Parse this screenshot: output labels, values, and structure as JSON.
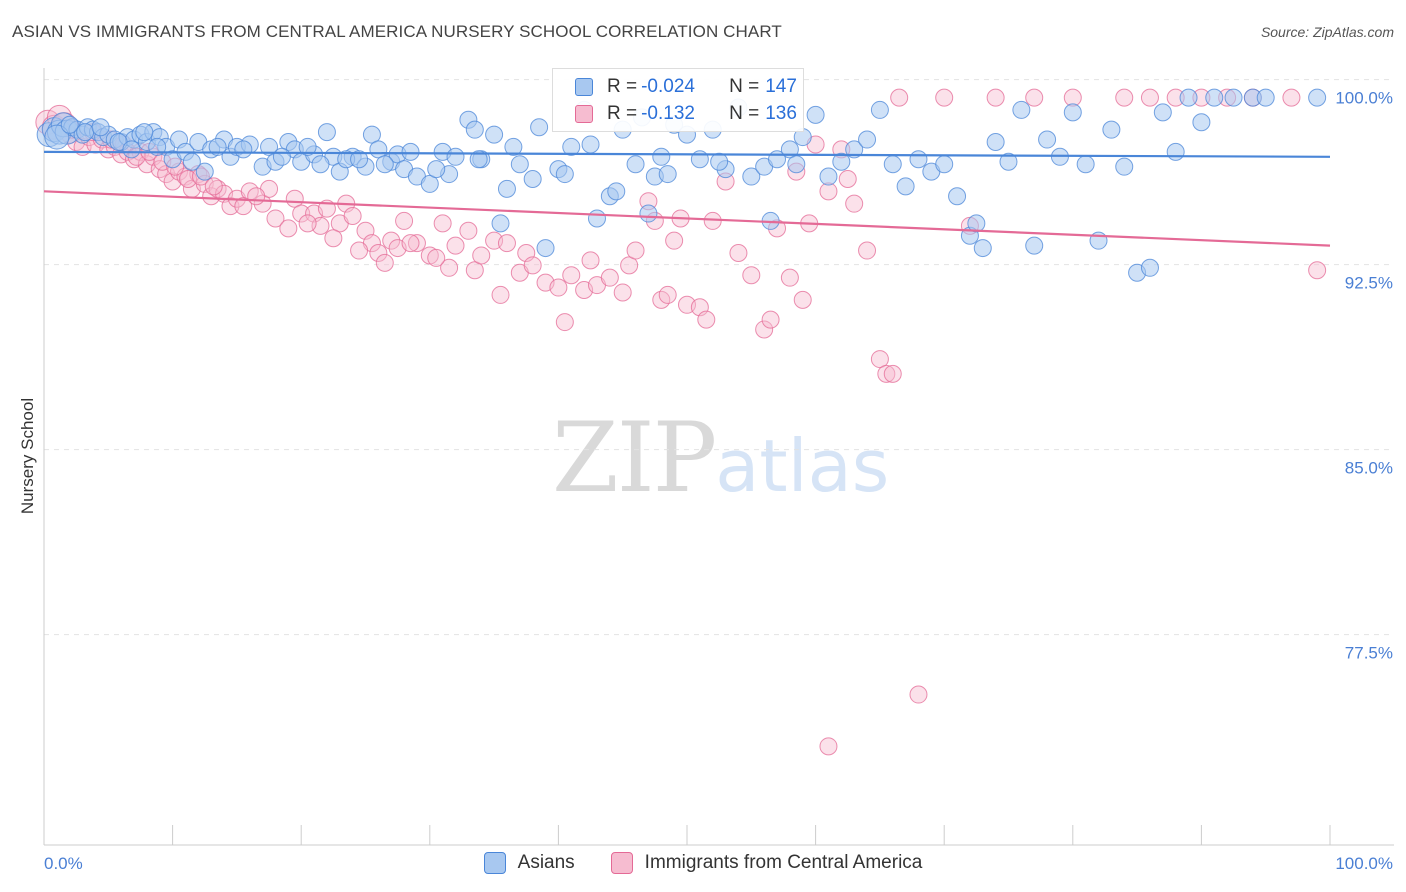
{
  "title": "ASIAN VS IMMIGRANTS FROM CENTRAL AMERICA NURSERY SCHOOL CORRELATION CHART",
  "source": "Source: ZipAtlas.com",
  "watermark": {
    "zip": "ZIP",
    "atlas": "atlas"
  },
  "legend": {
    "asians": {
      "r_label": "R =",
      "r_value": "-0.024",
      "n_label": "N =",
      "n_value": "147"
    },
    "immigrants": {
      "r_label": "R =",
      "r_value": "-0.132",
      "n_label": "N =",
      "n_value": "136"
    }
  },
  "colors": {
    "asian": "#4a86d8",
    "asian_fill": "#a8c8f0",
    "immigrant": "#e46a96",
    "immigrant_fill": "#f6bcd0"
  },
  "chart_data": {
    "type": "scatter",
    "title": "ASIAN VS IMMIGRANTS FROM CENTRAL AMERICA NURSERY SCHOOL CORRELATION CHART",
    "xlabel": "",
    "ylabel": "Nursery School",
    "xlim": [
      0,
      100
    ],
    "ylim": [
      69.7,
      101.2
    ],
    "x_ticks": [
      "0.0%",
      "100.0%"
    ],
    "y_ticks": [
      {
        "value": 100.0,
        "label": "100.0%"
      },
      {
        "value": 92.5,
        "label": "92.5%"
      },
      {
        "value": 85.0,
        "label": "85.0%"
      },
      {
        "value": 77.5,
        "label": "77.5%"
      }
    ],
    "grid": true,
    "legend_position": "bottom",
    "series": [
      {
        "name": "Asians",
        "color": "#4a86d8",
        "trend": {
          "x": [
            0,
            100
          ],
          "y": [
            97.8,
            97.6
          ]
        },
        "points": [
          [
            0.4,
            98.5
          ],
          [
            0.8,
            98.7
          ],
          [
            1.2,
            98.6
          ],
          [
            1.5,
            98.9
          ],
          [
            1.8,
            98.6
          ],
          [
            2.2,
            98.8
          ],
          [
            2.6,
            98.7
          ],
          [
            3.0,
            98.5
          ],
          [
            3.4,
            98.8
          ],
          [
            3.8,
            98.7
          ],
          [
            4.2,
            98.6
          ],
          [
            4.6,
            98.4
          ],
          [
            5.0,
            98.5
          ],
          [
            5.5,
            98.3
          ],
          [
            6.0,
            98.2
          ],
          [
            6.5,
            98.4
          ],
          [
            7.0,
            98.3
          ],
          [
            7.5,
            98.5
          ],
          [
            8.0,
            98.2
          ],
          [
            8.5,
            98.6
          ],
          [
            9.0,
            98.4
          ],
          [
            9.5,
            98.0
          ],
          [
            10.0,
            97.5
          ],
          [
            10.5,
            98.3
          ],
          [
            11.0,
            97.8
          ],
          [
            12.0,
            98.2
          ],
          [
            12.5,
            97.0
          ],
          [
            13.0,
            97.9
          ],
          [
            14.0,
            98.3
          ],
          [
            14.5,
            97.6
          ],
          [
            15.0,
            98.0
          ],
          [
            16.0,
            98.1
          ],
          [
            17.0,
            97.2
          ],
          [
            17.5,
            98.0
          ],
          [
            18.0,
            97.4
          ],
          [
            19.0,
            98.2
          ],
          [
            19.5,
            97.9
          ],
          [
            20.0,
            97.4
          ],
          [
            21.0,
            97.7
          ],
          [
            22.0,
            98.6
          ],
          [
            22.5,
            97.6
          ],
          [
            23.0,
            97.0
          ],
          [
            24.0,
            97.6
          ],
          [
            25.0,
            97.2
          ],
          [
            25.5,
            98.5
          ],
          [
            26.0,
            97.9
          ],
          [
            27.0,
            97.4
          ],
          [
            27.5,
            97.7
          ],
          [
            28.0,
            97.1
          ],
          [
            29.0,
            96.8
          ],
          [
            30.0,
            96.5
          ],
          [
            31.0,
            97.8
          ],
          [
            31.5,
            96.9
          ],
          [
            32.0,
            97.6
          ],
          [
            33.0,
            99.1
          ],
          [
            33.5,
            98.7
          ],
          [
            34.0,
            97.5
          ],
          [
            35.0,
            98.5
          ],
          [
            35.5,
            94.9
          ],
          [
            36.0,
            96.3
          ],
          [
            37.0,
            97.3
          ],
          [
            38.0,
            96.7
          ],
          [
            38.5,
            98.8
          ],
          [
            39.0,
            93.9
          ],
          [
            40.0,
            97.1
          ],
          [
            41.0,
            98.0
          ],
          [
            42.0,
            99.5
          ],
          [
            42.5,
            98.1
          ],
          [
            43.0,
            95.1
          ],
          [
            44.0,
            96.0
          ],
          [
            45.0,
            98.7
          ],
          [
            46.0,
            97.3
          ],
          [
            46.5,
            99.2
          ],
          [
            47.0,
            95.3
          ],
          [
            47.5,
            96.8
          ],
          [
            48.0,
            97.6
          ],
          [
            49.0,
            98.9
          ],
          [
            50.0,
            98.5
          ],
          [
            51.0,
            97.5
          ],
          [
            52.0,
            98.7
          ],
          [
            53.0,
            97.1
          ],
          [
            54.0,
            99.6
          ],
          [
            55.0,
            96.8
          ],
          [
            56.0,
            97.2
          ],
          [
            56.5,
            95.0
          ],
          [
            57.0,
            97.5
          ],
          [
            58.0,
            97.9
          ],
          [
            59.0,
            98.4
          ],
          [
            60.0,
            99.3
          ],
          [
            61.0,
            96.8
          ],
          [
            62.0,
            97.4
          ],
          [
            63.0,
            97.9
          ],
          [
            64.0,
            98.3
          ],
          [
            65.0,
            99.5
          ],
          [
            66.0,
            97.3
          ],
          [
            67.0,
            96.4
          ],
          [
            68.0,
            97.5
          ],
          [
            69.0,
            97.0
          ],
          [
            70.0,
            97.3
          ],
          [
            71.0,
            96.0
          ],
          [
            72.0,
            94.4
          ],
          [
            72.5,
            94.9
          ],
          [
            73.0,
            93.9
          ],
          [
            74.0,
            98.2
          ],
          [
            75.0,
            97.4
          ],
          [
            76.0,
            99.5
          ],
          [
            77.0,
            94.0
          ],
          [
            78.0,
            98.3
          ],
          [
            79.0,
            97.6
          ],
          [
            80.0,
            99.4
          ],
          [
            81.0,
            97.3
          ],
          [
            82.0,
            94.2
          ],
          [
            83.0,
            98.7
          ],
          [
            84.0,
            97.2
          ],
          [
            85.0,
            92.9
          ],
          [
            86.0,
            93.1
          ],
          [
            87.0,
            99.4
          ],
          [
            88.0,
            97.8
          ],
          [
            89.0,
            100.0
          ],
          [
            90.0,
            99.0
          ],
          [
            91.0,
            100.0
          ],
          [
            92.5,
            100.0
          ],
          [
            94.0,
            100.0
          ],
          [
            95.0,
            100.0
          ],
          [
            99.0,
            100.0
          ],
          [
            1.0,
            98.4
          ],
          [
            2.0,
            98.9
          ],
          [
            3.2,
            98.6
          ],
          [
            4.4,
            98.8
          ],
          [
            5.8,
            98.2
          ],
          [
            6.8,
            97.9
          ],
          [
            7.8,
            98.6
          ],
          [
            8.8,
            98.0
          ],
          [
            11.5,
            97.4
          ],
          [
            13.5,
            98.0
          ],
          [
            15.5,
            97.9
          ],
          [
            18.5,
            97.6
          ],
          [
            20.5,
            98.0
          ],
          [
            21.5,
            97.3
          ],
          [
            23.5,
            97.5
          ],
          [
            24.5,
            97.5
          ],
          [
            26.5,
            97.3
          ],
          [
            28.5,
            97.8
          ],
          [
            30.5,
            97.1
          ],
          [
            33.8,
            97.5
          ],
          [
            36.5,
            98.0
          ],
          [
            40.5,
            96.9
          ],
          [
            44.5,
            96.2
          ],
          [
            48.5,
            96.9
          ],
          [
            52.5,
            97.4
          ],
          [
            58.5,
            97.3
          ]
        ]
      },
      {
        "name": "Immigrants from Central America",
        "color": "#e46a96",
        "trend": {
          "x": [
            0,
            100
          ],
          "y": [
            96.2,
            94.0
          ]
        },
        "points": [
          [
            0.3,
            99.0
          ],
          [
            0.8,
            98.8
          ],
          [
            1.2,
            99.2
          ],
          [
            1.6,
            98.9
          ],
          [
            2.0,
            98.5
          ],
          [
            2.5,
            98.2
          ],
          [
            3.0,
            98.0
          ],
          [
            3.5,
            98.4
          ],
          [
            4.0,
            98.1
          ],
          [
            4.5,
            98.3
          ],
          [
            5.0,
            97.9
          ],
          [
            5.5,
            98.0
          ],
          [
            6.0,
            97.7
          ],
          [
            6.5,
            97.8
          ],
          [
            7.0,
            97.5
          ],
          [
            7.5,
            97.8
          ],
          [
            8.0,
            97.3
          ],
          [
            8.5,
            97.6
          ],
          [
            9.0,
            97.1
          ],
          [
            9.5,
            96.9
          ],
          [
            10.0,
            96.6
          ],
          [
            10.5,
            97.0
          ],
          [
            11.0,
            96.8
          ],
          [
            11.5,
            96.3
          ],
          [
            12.0,
            96.9
          ],
          [
            12.5,
            96.5
          ],
          [
            13.0,
            96.0
          ],
          [
            13.5,
            96.3
          ],
          [
            14.0,
            96.1
          ],
          [
            14.5,
            95.6
          ],
          [
            15.0,
            95.9
          ],
          [
            16.0,
            96.2
          ],
          [
            17.0,
            95.7
          ],
          [
            17.5,
            96.3
          ],
          [
            18.0,
            95.1
          ],
          [
            19.0,
            94.7
          ],
          [
            19.5,
            95.9
          ],
          [
            20.0,
            95.3
          ],
          [
            21.0,
            95.3
          ],
          [
            21.5,
            94.8
          ],
          [
            22.0,
            95.5
          ],
          [
            23.0,
            94.9
          ],
          [
            23.5,
            95.7
          ],
          [
            24.0,
            95.2
          ],
          [
            25.0,
            94.6
          ],
          [
            25.5,
            94.1
          ],
          [
            26.0,
            93.7
          ],
          [
            27.0,
            94.2
          ],
          [
            27.5,
            93.9
          ],
          [
            28.0,
            95.0
          ],
          [
            29.0,
            94.1
          ],
          [
            30.0,
            93.6
          ],
          [
            31.0,
            94.9
          ],
          [
            31.5,
            93.1
          ],
          [
            32.0,
            94.0
          ],
          [
            33.0,
            94.6
          ],
          [
            33.5,
            93.0
          ],
          [
            34.0,
            93.6
          ],
          [
            35.0,
            94.2
          ],
          [
            35.5,
            92.0
          ],
          [
            36.0,
            94.1
          ],
          [
            37.0,
            92.9
          ],
          [
            37.5,
            93.7
          ],
          [
            38.0,
            93.2
          ],
          [
            39.0,
            92.5
          ],
          [
            40.0,
            92.3
          ],
          [
            40.5,
            90.9
          ],
          [
            41.0,
            92.8
          ],
          [
            42.0,
            92.2
          ],
          [
            42.5,
            93.4
          ],
          [
            43.0,
            92.4
          ],
          [
            44.0,
            92.7
          ],
          [
            45.0,
            92.1
          ],
          [
            45.5,
            93.2
          ],
          [
            46.0,
            93.8
          ],
          [
            47.0,
            95.8
          ],
          [
            47.5,
            95.0
          ],
          [
            48.0,
            91.8
          ],
          [
            48.5,
            92.0
          ],
          [
            49.0,
            94.2
          ],
          [
            49.5,
            95.1
          ],
          [
            50.0,
            91.6
          ],
          [
            51.0,
            91.5
          ],
          [
            51.5,
            91.0
          ],
          [
            52.0,
            95.0
          ],
          [
            53.0,
            96.6
          ],
          [
            54.0,
            93.7
          ],
          [
            55.0,
            92.8
          ],
          [
            56.0,
            90.6
          ],
          [
            56.5,
            91.0
          ],
          [
            57.0,
            94.7
          ],
          [
            58.0,
            92.7
          ],
          [
            58.5,
            97.0
          ],
          [
            59.0,
            91.8
          ],
          [
            59.5,
            94.9
          ],
          [
            60.0,
            98.1
          ],
          [
            61.0,
            96.2
          ],
          [
            62.0,
            97.9
          ],
          [
            62.5,
            96.7
          ],
          [
            63.0,
            95.7
          ],
          [
            64.0,
            93.8
          ],
          [
            65.0,
            89.4
          ],
          [
            65.5,
            88.8
          ],
          [
            66.0,
            88.8
          ],
          [
            68.0,
            75.8
          ],
          [
            72.0,
            94.8
          ],
          [
            77.0,
            100.0
          ],
          [
            80.0,
            100.0
          ],
          [
            84.0,
            100.0
          ],
          [
            86.0,
            100.0
          ],
          [
            88.0,
            100.0
          ],
          [
            90.0,
            100.0
          ],
          [
            92.0,
            100.0
          ],
          [
            94.0,
            100.0
          ],
          [
            97.0,
            100.0
          ],
          [
            99.0,
            93.0
          ],
          [
            66.5,
            100.0
          ],
          [
            70.0,
            100.0
          ],
          [
            74.0,
            100.0
          ],
          [
            61.0,
            73.7
          ],
          [
            2.2,
            98.7
          ],
          [
            3.8,
            98.6
          ],
          [
            5.2,
            98.3
          ],
          [
            6.2,
            98.1
          ],
          [
            7.2,
            97.6
          ],
          [
            8.2,
            97.8
          ],
          [
            9.2,
            97.4
          ],
          [
            10.2,
            97.2
          ],
          [
            11.2,
            96.7
          ],
          [
            12.2,
            96.8
          ],
          [
            13.2,
            96.4
          ],
          [
            15.5,
            95.6
          ],
          [
            16.5,
            96.0
          ],
          [
            20.5,
            94.9
          ],
          [
            22.5,
            94.3
          ],
          [
            24.5,
            93.8
          ],
          [
            26.5,
            93.3
          ],
          [
            28.5,
            94.1
          ],
          [
            30.5,
            93.5
          ]
        ]
      }
    ]
  },
  "bottom_legend": {
    "asians": "Asians",
    "immigrants": "Immigrants from Central America"
  }
}
